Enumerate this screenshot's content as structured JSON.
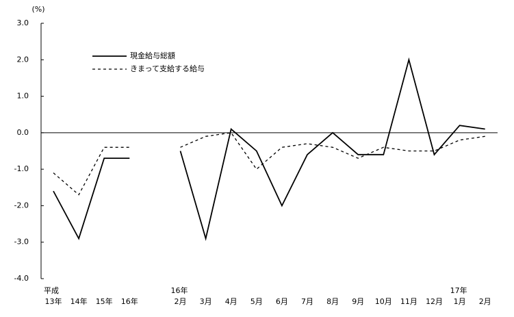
{
  "chart_data": {
    "type": "line",
    "y_unit_label": "(%)",
    "categories": [
      "13年",
      "14年",
      "15年",
      "16年",
      null,
      "2月",
      "3月",
      "4月",
      "5月",
      "6月",
      "7月",
      "8月",
      "9月",
      "10月",
      "11月",
      "12月",
      "1月",
      "2月"
    ],
    "category_prefixes": [
      "平成",
      null,
      null,
      null,
      null,
      "16年",
      null,
      null,
      null,
      null,
      null,
      null,
      null,
      null,
      null,
      null,
      "17年",
      null
    ],
    "series": [
      {
        "name": "現金給与総額",
        "color": "#000000",
        "dash": "solid",
        "values": [
          -1.6,
          -2.9,
          -0.7,
          -0.7,
          null,
          -0.5,
          -2.9,
          0.1,
          -0.5,
          -2.0,
          -0.6,
          0.0,
          -0.6,
          -0.6,
          2.0,
          -0.6,
          0.2,
          0.1
        ]
      },
      {
        "name": "きまって支給する給与",
        "color": "#000000",
        "dash": "dashed",
        "values": [
          -1.1,
          -1.7,
          -0.4,
          -0.4,
          null,
          -0.4,
          -0.1,
          0.0,
          -1.0,
          -0.4,
          -0.3,
          -0.4,
          -0.7,
          -0.4,
          -0.5,
          -0.5,
          -0.2,
          -0.1
        ]
      }
    ],
    "ylim": [
      -4,
      3
    ],
    "yticks": [
      {
        "value": 3,
        "label": "3.0"
      },
      {
        "value": 2,
        "label": "2.0"
      },
      {
        "value": 1,
        "label": "1.0"
      },
      {
        "value": 0,
        "label": "0.0"
      },
      {
        "value": -1,
        "label": "-1.0"
      },
      {
        "value": -2,
        "label": "-2.0"
      },
      {
        "value": -3,
        "label": "-3.0"
      },
      {
        "value": -4,
        "label": "-4.0"
      }
    ],
    "legend": "upper-left"
  }
}
